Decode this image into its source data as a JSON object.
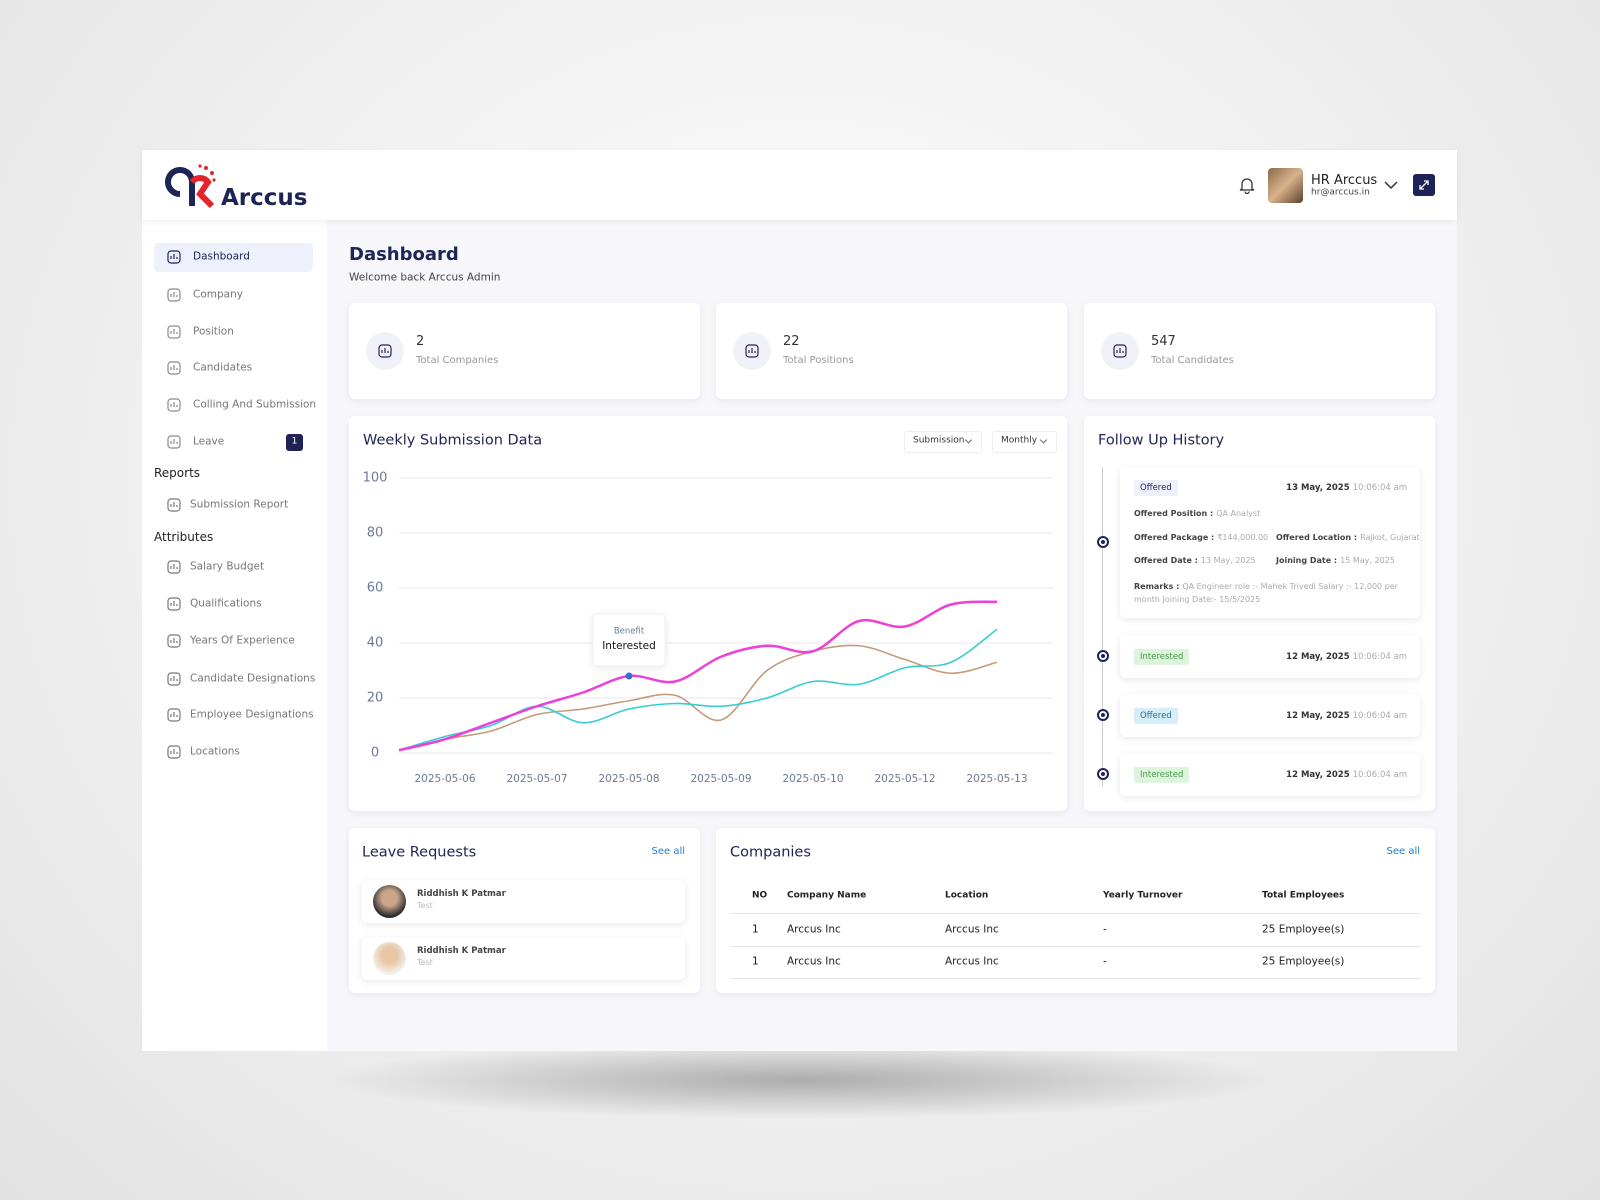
{
  "header": {
    "brand": "Arccus",
    "user_name": "HR Arccus",
    "user_email": "hr@arccus.in"
  },
  "sidebar": {
    "items": [
      {
        "label": "Dashboard"
      },
      {
        "label": "Company"
      },
      {
        "label": "Position"
      },
      {
        "label": "Candidates"
      },
      {
        "label": "Colling And Submission"
      },
      {
        "label": "Leave",
        "badge": 1
      }
    ],
    "reports": {
      "heading": "Reports",
      "items": [
        "Submission Report"
      ]
    },
    "attributes": {
      "heading": "Attributes",
      "items": [
        "Salary Budget",
        "Qualifications",
        "Years Of Experience",
        "Candidate Designations",
        "Employee Designations",
        "Locations"
      ]
    }
  },
  "page": {
    "title": "Dashboard",
    "subtitle": "Welcome back Arccus Admin"
  },
  "stats": [
    {
      "value": 2,
      "label": "Total Companies"
    },
    {
      "value": 22,
      "label": "Total Positions"
    },
    {
      "value": 547,
      "label": "Total Candidates"
    }
  ],
  "chart_controls": [
    "Submission",
    "Monthly"
  ],
  "chart_data": {
    "type": "line",
    "title": "Weekly Submission Data",
    "categories": [
      null,
      "2025-05-06",
      null,
      "2025-05-07",
      null,
      "2025-05-08",
      null,
      "2025-05-09",
      null,
      "2025-05-10",
      null,
      "2025-05-12",
      null,
      "2025-05-13"
    ],
    "series": [
      {
        "color": "#ee3fd6",
        "values": [
          1,
          5,
          11,
          17,
          22,
          28,
          26,
          35,
          39,
          37,
          48,
          46,
          54,
          55
        ]
      },
      {
        "color": "#36cdd0",
        "values": [
          1,
          6,
          10,
          17,
          11,
          16,
          18,
          17,
          20,
          26,
          25,
          31,
          33,
          45
        ]
      },
      {
        "color": "#c49a7a",
        "values": [
          1,
          5,
          8,
          14,
          16,
          19,
          21,
          12,
          30,
          37,
          39,
          34,
          29,
          33
        ]
      }
    ],
    "ylim": [
      0,
      100
    ],
    "yticks": [
      0,
      20,
      40,
      60,
      80,
      100
    ],
    "grid": true,
    "tooltip": {
      "title": "Benefit",
      "value": "Interested"
    }
  },
  "follow_up": {
    "title": "Follow Up History",
    "items": [
      {
        "status": "Offered",
        "date": "13 May, 2025",
        "time": "10:06:04 am",
        "details": [
          [
            {
              "label": "Offered Position :",
              "value": "QA Analyst"
            }
          ],
          [
            {
              "label": "Offered Package :",
              "value": "₹144,000.00"
            },
            {
              "label": "Offered Location :",
              "value": "Rajkot, Gujarat"
            }
          ],
          [
            {
              "label": "Offered Date :",
              "value": "13 May, 2025"
            },
            {
              "label": "Joining Date :",
              "value": "15 May, 2025"
            }
          ]
        ],
        "remarks": {
          "label": "Remarks :",
          "value": "QA Engineer role :- Mahek Trivedi Salary :- 12,000 per month Joining Date:- 15/5/2025"
        }
      },
      {
        "status": "Interested",
        "date": "12 May, 2025",
        "time": "10:06:04 am"
      },
      {
        "status": "Offered",
        "date": "12 May, 2025",
        "time": "10:06:04 am"
      },
      {
        "status": "Interested",
        "date": "12 May, 2025",
        "time": "10:06:04 am"
      }
    ]
  },
  "leave_requests": {
    "title": "Leave Requests",
    "see_all": "See all",
    "items": [
      {
        "name": "Riddhish K Patmar",
        "note": "Test"
      },
      {
        "name": "Riddhish K Patmar",
        "note": "Test"
      }
    ]
  },
  "companies": {
    "title": "Companies",
    "see_all": "See all",
    "columns": [
      "NO",
      "Company Name",
      "Location",
      "Yearly Turnover",
      "Total Employees"
    ],
    "rows": [
      [
        1,
        "Arccus Inc",
        "Arccus Inc",
        "-",
        "25 Employee(s)"
      ],
      [
        1,
        "Arccus Inc",
        "Arccus Inc",
        "-",
        "25 Employee(s)"
      ]
    ]
  }
}
